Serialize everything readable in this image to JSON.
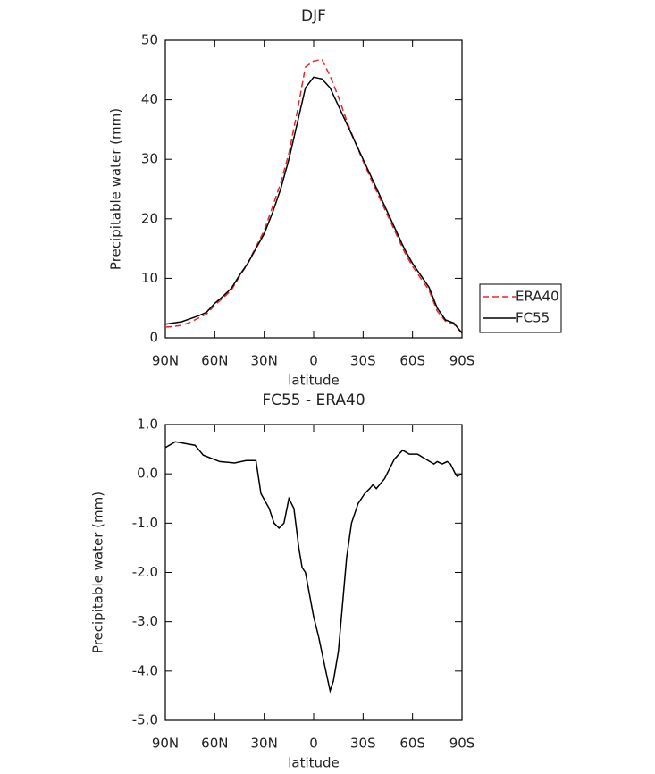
{
  "chart_data": [
    {
      "type": "line",
      "title": "DJF",
      "xlabel": "latitude",
      "ylabel": "Precipitable water (mm)",
      "x": [
        90,
        85,
        80,
        75,
        70,
        65,
        60,
        55,
        50,
        45,
        40,
        35,
        30,
        25,
        20,
        15,
        10,
        5,
        0,
        -5,
        -10,
        -15,
        -20,
        -25,
        -30,
        -35,
        -40,
        -45,
        -50,
        -55,
        -60,
        -65,
        -70,
        -75,
        -80,
        -85,
        -90
      ],
      "series": [
        {
          "name": "ERA40",
          "color": "#e8262a",
          "dash": true,
          "values": [
            1.8,
            1.9,
            2.1,
            2.6,
            3.3,
            4.0,
            5.5,
            6.7,
            8.0,
            10.3,
            12.5,
            15.3,
            18,
            22,
            26,
            31,
            38,
            45.5,
            46.5,
            46.8,
            44,
            40.5,
            36.5,
            33,
            29.7,
            26.5,
            23.5,
            20.5,
            17.5,
            14.5,
            12,
            10,
            8,
            4.5,
            2.8,
            2.3,
            0.8
          ]
        },
        {
          "name": "FC55",
          "color": "#000000",
          "dash": false,
          "values": [
            2.3,
            2.5,
            2.7,
            3.2,
            3.7,
            4.3,
            5.8,
            7.0,
            8.3,
            10.5,
            12.5,
            15,
            17.5,
            21,
            25,
            30,
            36,
            42,
            43.8,
            43.5,
            42,
            39,
            36,
            33,
            30,
            27,
            24,
            21,
            18,
            15,
            12.5,
            10.5,
            8.5,
            5,
            3,
            2.5,
            0.8
          ]
        }
      ],
      "xlim": [
        90,
        -90
      ],
      "xticks": [
        {
          "value": 90,
          "label": "90N"
        },
        {
          "value": 60,
          "label": "60N"
        },
        {
          "value": 30,
          "label": "30N"
        },
        0,
        {
          "value": -30,
          "label": "30S"
        },
        {
          "value": -60,
          "label": "60S"
        },
        {
          "value": -90,
          "label": "90S"
        }
      ],
      "ylim": [
        0,
        50
      ],
      "yticks": [
        0,
        10,
        20,
        30,
        40,
        50
      ],
      "legend": "right"
    },
    {
      "type": "line",
      "title": "FC55 - ERA40",
      "xlabel": "latitude",
      "ylabel": "Precipitable water (mm)",
      "x": [
        90,
        84,
        72,
        67,
        57,
        48,
        41,
        35,
        32,
        27,
        24,
        21,
        18,
        15,
        12,
        9,
        7,
        5,
        0,
        -3,
        -8,
        -10,
        -12,
        -15,
        -20,
        -23,
        -27,
        -31,
        -34,
        -36,
        -38,
        -43,
        -49,
        -54,
        -58,
        -63,
        -68,
        -73,
        -75,
        -78,
        -81,
        -83,
        -86,
        -87,
        -90
      ],
      "series": [
        {
          "name": "FC55 - ERA40",
          "color": "#000000",
          "dash": false,
          "values": [
            0.53,
            0.65,
            0.58,
            0.38,
            0.25,
            0.22,
            0.27,
            0.27,
            -0.4,
            -0.7,
            -1.0,
            -1.1,
            -1.0,
            -0.5,
            -0.7,
            -1.5,
            -1.9,
            -2.0,
            -2.9,
            -3.3,
            -4.1,
            -4.4,
            -4.2,
            -3.6,
            -1.7,
            -1.0,
            -0.6,
            -0.4,
            -0.3,
            -0.22,
            -0.3,
            -0.1,
            0.3,
            0.48,
            0.4,
            0.4,
            0.3,
            0.2,
            0.25,
            0.2,
            0.25,
            0.2,
            0.0,
            -0.05,
            0.0
          ]
        }
      ],
      "xlim": [
        90,
        -90
      ],
      "xticks": [
        {
          "value": 90,
          "label": "90N"
        },
        {
          "value": 60,
          "label": "60N"
        },
        {
          "value": 30,
          "label": "30N"
        },
        0,
        {
          "value": -30,
          "label": "30S"
        },
        {
          "value": -60,
          "label": "60S"
        },
        {
          "value": -90,
          "label": "90S"
        }
      ],
      "ylim": [
        -5,
        1
      ],
      "yticks": [
        {
          "value": -5,
          "label": "-5.0"
        },
        {
          "value": -4,
          "label": "-4.0"
        },
        {
          "value": -3,
          "label": "-3.0"
        },
        {
          "value": -2,
          "label": "-2.0"
        },
        {
          "value": -1,
          "label": "-1.0"
        },
        {
          "value": 0,
          "label": "0.0"
        },
        {
          "value": 1,
          "label": "1.0"
        }
      ]
    }
  ]
}
